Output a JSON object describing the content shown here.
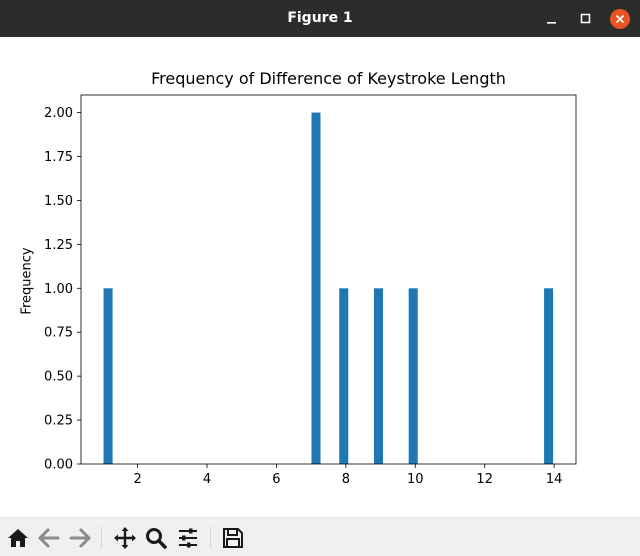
{
  "window": {
    "title": "Figure 1"
  },
  "toolbar": {
    "buttons": [
      "home-icon",
      "back-icon",
      "forward-icon",
      "pan-icon",
      "zoom-icon",
      "configure-subplots-icon",
      "save-icon"
    ]
  },
  "chart_data": {
    "type": "bar",
    "title": "Frequency of Difference of Keystroke Length",
    "xlabel": "",
    "ylabel": "Frequency",
    "x": [
      1.15,
      7.14,
      7.94,
      8.94,
      9.94,
      13.84
    ],
    "values": [
      1,
      2,
      1,
      1,
      1,
      1
    ],
    "bar_width": 0.26,
    "xlim": [
      0.37,
      14.63
    ],
    "ylim": [
      0,
      2.1
    ],
    "xticks": [
      2,
      4,
      6,
      8,
      10,
      12,
      14
    ],
    "xtick_labels": [
      "2",
      "4",
      "6",
      "8",
      "10",
      "12",
      "14"
    ],
    "yticks": [
      0,
      0.25,
      0.5,
      0.75,
      1.0,
      1.25,
      1.5,
      1.75,
      2.0
    ],
    "ytick_labels": [
      "0.00",
      "0.25",
      "0.50",
      "0.75",
      "1.00",
      "1.25",
      "1.50",
      "1.75",
      "2.00"
    ],
    "bar_color": "#1f77b4",
    "grid": false,
    "legend": "none"
  }
}
